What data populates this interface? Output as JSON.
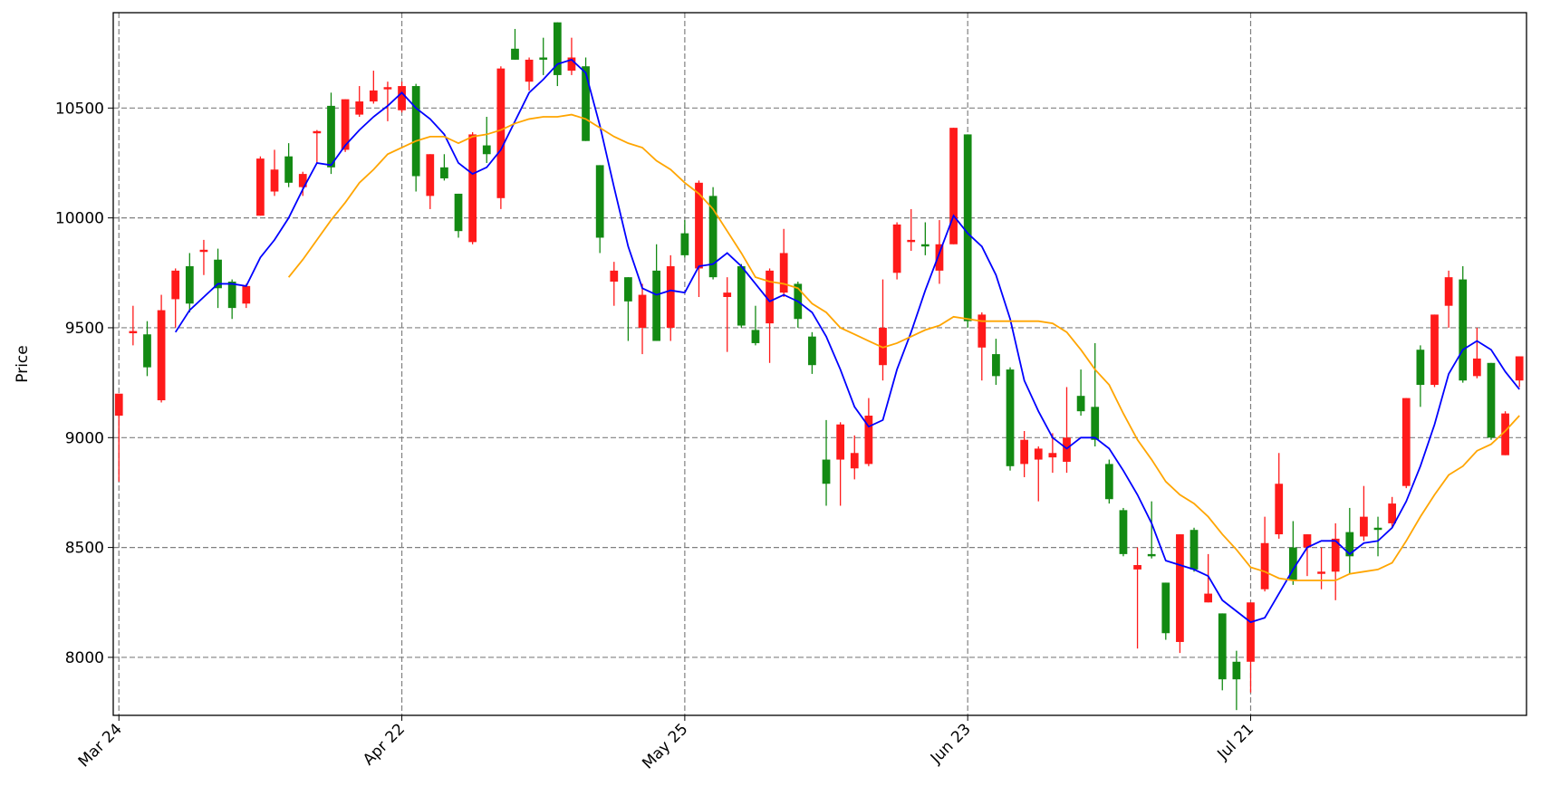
{
  "chart_data": {
    "type": "candlestick",
    "y_label": "Price",
    "x": [
      0,
      1,
      2,
      3,
      4,
      5,
      6,
      7,
      8,
      9,
      10,
      11,
      12,
      13,
      14,
      15,
      16,
      17,
      18,
      19,
      20,
      21,
      22,
      23,
      24,
      25,
      26,
      27,
      28,
      29,
      30,
      31,
      32,
      33,
      34,
      35,
      36,
      37,
      38,
      39,
      40,
      41,
      42,
      43,
      44,
      45,
      46,
      47,
      48,
      49,
      50,
      51,
      52,
      53,
      54,
      55,
      56,
      57,
      58,
      59,
      60,
      61,
      62,
      63,
      64,
      65,
      66,
      67,
      68,
      69,
      70,
      71,
      72,
      73,
      74,
      75,
      76,
      77,
      78,
      79,
      80,
      81,
      82,
      83,
      84,
      85,
      86,
      87,
      88,
      89,
      90,
      91,
      92,
      93,
      94,
      95,
      96,
      97,
      98,
      99
    ],
    "open": [
      9100,
      9475,
      9470,
      9170,
      9630,
      9780,
      9845,
      9810,
      9710,
      9610,
      10010,
      10120,
      10280,
      10140,
      10385,
      10510,
      10310,
      10470,
      10530,
      10585,
      10490,
      10600,
      10100,
      10230,
      10110,
      9890,
      10330,
      10090,
      10770,
      10620,
      10730,
      10890,
      10670,
      10690,
      10240,
      9710,
      9730,
      9500,
      9760,
      9500,
      9930,
      9770,
      10100,
      9640,
      9780,
      9490,
      9520,
      9660,
      9700,
      9460,
      8900,
      8900,
      8860,
      8880,
      9330,
      9750,
      9890,
      9880,
      9760,
      9880,
      10380,
      9410,
      9380,
      9310,
      8880,
      8900,
      8910,
      8890,
      9190,
      9140,
      8880,
      8670,
      8400,
      8470,
      8340,
      8070,
      8580,
      8250,
      8200,
      7980,
      7980,
      8310,
      8560,
      8500,
      8500,
      8380,
      8390,
      8570,
      8550,
      8590,
      8610,
      8780,
      9400,
      9240,
      9600,
      9720,
      9280,
      9340,
      8920,
      9260
    ],
    "high": [
      9200,
      9600,
      9530,
      9650,
      9770,
      9840,
      9900,
      9860,
      9720,
      9700,
      10280,
      10310,
      10340,
      10210,
      10400,
      10570,
      10540,
      10600,
      10670,
      10620,
      10620,
      10610,
      10290,
      10290,
      10110,
      10390,
      10460,
      10690,
      10860,
      10730,
      10820,
      10890,
      10820,
      10730,
      10240,
      9800,
      9730,
      9700,
      9880,
      9830,
      9990,
      10170,
      10140,
      9730,
      9790,
      9600,
      9770,
      9950,
      9710,
      9480,
      9080,
      9070,
      9010,
      9180,
      9720,
      9980,
      10040,
      9980,
      9990,
      10410,
      10380,
      9570,
      9450,
      9320,
      9030,
      8960,
      9020,
      9230,
      9310,
      9430,
      8900,
      8680,
      8500,
      8710,
      8340,
      8560,
      8590,
      8470,
      8200,
      8030,
      8250,
      8640,
      8930,
      8620,
      8560,
      8500,
      8610,
      8680,
      8780,
      8640,
      8730,
      9180,
      9420,
      9560,
      9760,
      9780,
      9500,
      9340,
      9120,
      9370
    ],
    "low": [
      8800,
      9420,
      9280,
      9160,
      9500,
      9570,
      9740,
      9590,
      9540,
      9590,
      10010,
      10100,
      10140,
      10100,
      10250,
      10200,
      10300,
      10460,
      10520,
      10440,
      10480,
      10120,
      10040,
      10170,
      9910,
      9880,
      10250,
      10040,
      10720,
      10580,
      10650,
      10600,
      10650,
      10350,
      9840,
      9600,
      9440,
      9380,
      9440,
      9440,
      9820,
      9640,
      9720,
      9390,
      9500,
      9420,
      9340,
      9640,
      9500,
      9290,
      8690,
      8690,
      8810,
      8870,
      9260,
      9720,
      9850,
      9830,
      9700,
      9880,
      9500,
      9260,
      9240,
      8850,
      8820,
      8710,
      8840,
      8840,
      9100,
      8960,
      8700,
      8460,
      8040,
      8450,
      8080,
      8020,
      8390,
      8250,
      7850,
      7760,
      7840,
      8300,
      8540,
      8330,
      8370,
      8310,
      8260,
      8380,
      8530,
      8460,
      8590,
      8770,
      9140,
      9230,
      9500,
      9250,
      9270,
      8990,
      8920,
      9230
    ],
    "close": [
      9200,
      9485,
      9320,
      9580,
      9760,
      9610,
      9855,
      9680,
      9590,
      9690,
      10270,
      10220,
      10160,
      10200,
      10395,
      10230,
      10540,
      10530,
      10580,
      10595,
      10600,
      10190,
      10290,
      10180,
      9940,
      10380,
      10290,
      10680,
      10720,
      10720,
      10720,
      10650,
      10730,
      10350,
      9910,
      9760,
      9620,
      9650,
      9440,
      9780,
      9830,
      10160,
      9730,
      9660,
      9510,
      9430,
      9760,
      9840,
      9540,
      9330,
      8790,
      9060,
      8930,
      9100,
      9500,
      9970,
      9900,
      9870,
      9880,
      10410,
      9530,
      9560,
      9280,
      8870,
      8990,
      8950,
      8930,
      9000,
      9120,
      8990,
      8720,
      8470,
      8420,
      8460,
      8110,
      8560,
      8400,
      8290,
      7900,
      7900,
      8250,
      8520,
      8790,
      8350,
      8560,
      8390,
      8540,
      8460,
      8640,
      8580,
      8700,
      9180,
      9240,
      9560,
      9730,
      9260,
      9360,
      9000,
      9110,
      9370
    ],
    "up_color": "#ff1a1a",
    "down_color": "#138a13",
    "lines": [
      {
        "color": "#0000ff",
        "values": [
          null,
          null,
          null,
          null,
          9480,
          9580,
          9640,
          9700,
          9700,
          9690,
          9820,
          9900,
          10000,
          10130,
          10250,
          10240,
          10330,
          10400,
          10460,
          10510,
          10570,
          10500,
          10450,
          10380,
          10250,
          10200,
          10230,
          10310,
          10440,
          10570,
          10630,
          10700,
          10720,
          10660,
          10420,
          10140,
          9870,
          9680,
          9650,
          9670,
          9660,
          9780,
          9790,
          9840,
          9780,
          9700,
          9620,
          9650,
          9620,
          9570,
          9460,
          9310,
          9140,
          9050,
          9080,
          9310,
          9480,
          9670,
          9840,
          10010,
          9930,
          9870,
          9740,
          9540,
          9260,
          9120,
          9000,
          8950,
          9000,
          9000,
          8950,
          8850,
          8740,
          8610,
          8440,
          8420,
          8400,
          8370,
          8260,
          8210,
          8160,
          8180,
          8290,
          8400,
          8500,
          8530,
          8530,
          8470,
          8520,
          8530,
          8590,
          8710,
          8870,
          9060,
          9290,
          9400,
          9440,
          9400,
          9300,
          9220
        ]
      },
      {
        "color": "#ffa500",
        "values": [
          null,
          null,
          null,
          null,
          null,
          null,
          null,
          null,
          null,
          null,
          null,
          null,
          9730,
          9810,
          9900,
          9990,
          10070,
          10160,
          10220,
          10290,
          10320,
          10350,
          10370,
          10370,
          10340,
          10370,
          10380,
          10400,
          10430,
          10450,
          10460,
          10460,
          10470,
          10450,
          10410,
          10370,
          10340,
          10320,
          10260,
          10220,
          10160,
          10110,
          10040,
          9940,
          9840,
          9730,
          9710,
          9700,
          9680,
          9610,
          9570,
          9500,
          9470,
          9440,
          9410,
          9430,
          9460,
          9490,
          9510,
          9550,
          9540,
          9530,
          9530,
          9530,
          9530,
          9530,
          9520,
          9480,
          9400,
          9310,
          9240,
          9110,
          8990,
          8900,
          8800,
          8740,
          8700,
          8640,
          8560,
          8490,
          8410,
          8390,
          8360,
          8350,
          8350,
          8350,
          8350,
          8380,
          8390,
          8400,
          8430,
          8530,
          8640,
          8740,
          8830,
          8870,
          8940,
          8970,
          9030,
          9100
        ]
      }
    ],
    "xlim": [
      -0.4,
      99.5
    ],
    "xticks": [
      {
        "value": 0,
        "label": "Mar 24"
      },
      {
        "value": 20,
        "label": "Apr 22"
      },
      {
        "value": 40,
        "label": "May 25"
      },
      {
        "value": 60,
        "label": "Jun 23"
      },
      {
        "value": 80,
        "label": "Jul 21"
      }
    ],
    "ylim": [
      7736,
      10934
    ],
    "yticks": [
      8000,
      8500,
      9000,
      9500,
      10000,
      10500
    ],
    "grid": true
  }
}
